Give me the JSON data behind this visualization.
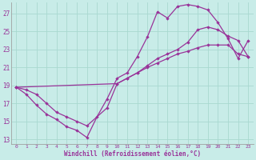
{
  "xlabel": "Windchill (Refroidissement éolien,°C)",
  "bg_color": "#c8ece8",
  "line_color": "#993399",
  "xlim": [
    -0.5,
    23.5
  ],
  "ylim": [
    12.5,
    28.2
  ],
  "xticks": [
    0,
    1,
    2,
    3,
    4,
    5,
    6,
    7,
    8,
    9,
    10,
    11,
    12,
    13,
    14,
    15,
    16,
    17,
    18,
    19,
    20,
    21,
    22,
    23
  ],
  "yticks": [
    13,
    15,
    17,
    19,
    21,
    23,
    25,
    27
  ],
  "curve1_x": [
    0,
    1,
    2,
    3,
    4,
    5,
    6,
    7,
    8,
    9,
    10,
    11,
    12,
    13,
    14,
    15,
    16,
    17,
    18,
    19,
    20,
    21,
    22,
    23
  ],
  "curve1_y": [
    18.8,
    18.0,
    16.8,
    15.8,
    15.2,
    14.4,
    14.0,
    13.2,
    15.5,
    17.5,
    19.8,
    20.4,
    22.2,
    24.4,
    27.2,
    26.5,
    27.8,
    28.0,
    27.8,
    27.4,
    26.0,
    24.2,
    22.0,
    24.0
  ],
  "curve2_x": [
    0,
    1,
    2,
    3,
    4,
    5,
    6,
    7,
    9,
    10,
    11,
    12,
    13,
    14,
    15,
    16,
    17,
    18,
    19,
    20,
    21,
    22,
    23
  ],
  "curve2_y": [
    18.8,
    18.5,
    18.0,
    17.0,
    16.0,
    15.5,
    15.0,
    14.5,
    16.5,
    19.2,
    19.8,
    20.4,
    21.2,
    22.0,
    22.5,
    23.0,
    23.8,
    25.2,
    25.5,
    25.2,
    24.5,
    24.0,
    22.2
  ],
  "curve3_x": [
    0,
    10,
    11,
    12,
    13,
    14,
    15,
    16,
    17,
    18,
    19,
    20,
    21,
    22,
    23
  ],
  "curve3_y": [
    18.8,
    19.2,
    19.8,
    20.4,
    21.0,
    21.5,
    22.0,
    22.5,
    22.8,
    23.2,
    23.5,
    23.5,
    23.5,
    22.5,
    22.2
  ]
}
